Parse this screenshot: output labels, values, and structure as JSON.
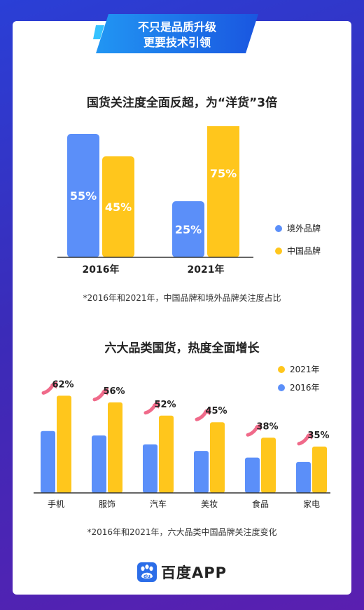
{
  "banner": {
    "line1": "不只是品质升级",
    "line2": "更要技术引领"
  },
  "colors": {
    "overseas": "#5b8ff9",
    "domestic": "#ffc61c",
    "arrow": "#f06a8a",
    "highlight": "#ffe14d"
  },
  "section1": {
    "title": "国货关注度全面反超，为“洋货”3倍",
    "note": "*2016年和2021年，中国品牌和境外品牌关注度占比"
  },
  "section2": {
    "title": "六大品类国货，热度全面增长",
    "note": "*2016年和2021年，六大品类中国品牌关注度变化"
  },
  "logo": {
    "text": "百度APP",
    "icon": "baidu-paw-icon"
  },
  "chart_data": [
    {
      "type": "bar",
      "categories": [
        "2016年",
        "2021年"
      ],
      "series": [
        {
          "name": "境外品牌",
          "values": [
            55,
            25
          ],
          "labels": [
            "55%",
            "25%"
          ]
        },
        {
          "name": "中国品牌",
          "values": [
            45,
            75
          ],
          "labels": [
            "45%",
            "75%"
          ]
        }
      ],
      "ylim": [
        0,
        80
      ],
      "legend": "right"
    },
    {
      "type": "bar",
      "categories": [
        "手机",
        "服饰",
        "汽车",
        "美妆",
        "食品",
        "家电"
      ],
      "series": [
        {
          "name": "2021年",
          "values": [
            22,
            20.5,
            17.5,
            16,
            12.5,
            10.5
          ]
        },
        {
          "name": "2016年",
          "values": [
            14,
            13,
            11,
            9.5,
            8,
            7
          ]
        }
      ],
      "growth_labels": [
        "62%",
        "56%",
        "52%",
        "45%",
        "38%",
        "35%"
      ],
      "ylim": [
        0,
        24
      ],
      "legend": "top-right"
    }
  ]
}
